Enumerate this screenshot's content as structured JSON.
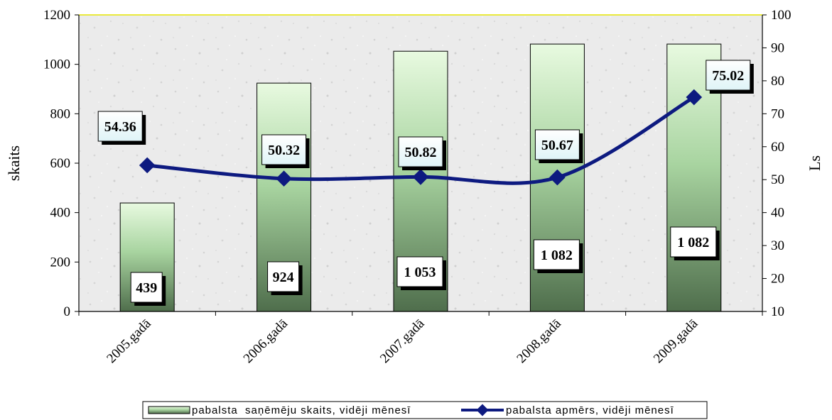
{
  "chart_data": {
    "type": "bar",
    "categories": [
      "2005.gadā",
      "2006.gadā",
      "2007.gadā",
      "2008.gadā",
      "2009.gadā"
    ],
    "series": [
      {
        "name": "pabalsta  saņēmēju skaits, vidēji mēnesī",
        "type": "bar",
        "axis": "left",
        "values": [
          439,
          924,
          1053,
          1082,
          1082
        ],
        "labels": [
          "439",
          "924",
          "1 053",
          "1 082",
          "1 082"
        ],
        "color": "#8fbf8f"
      },
      {
        "name": "pabalsta apmērs, vidēji mēnesī",
        "type": "line",
        "axis": "right",
        "values": [
          54.36,
          50.32,
          50.82,
          50.67,
          75.02
        ],
        "labels": [
          "54.36",
          "50.32",
          "50.82",
          "50.67",
          "75.02"
        ],
        "color": "#0d1a80"
      }
    ],
    "ylabel": "skaits",
    "y2label": "Ls",
    "ylim": [
      0,
      1200
    ],
    "y2lim": [
      10,
      100
    ],
    "yticks": [
      "0",
      "200",
      "400",
      "600",
      "800",
      "1000",
      "1200"
    ],
    "y2ticks": [
      "10",
      "20",
      "30",
      "40",
      "50",
      "60",
      "70",
      "80",
      "90",
      "100"
    ],
    "grid": false,
    "legend_position": "bottom"
  }
}
